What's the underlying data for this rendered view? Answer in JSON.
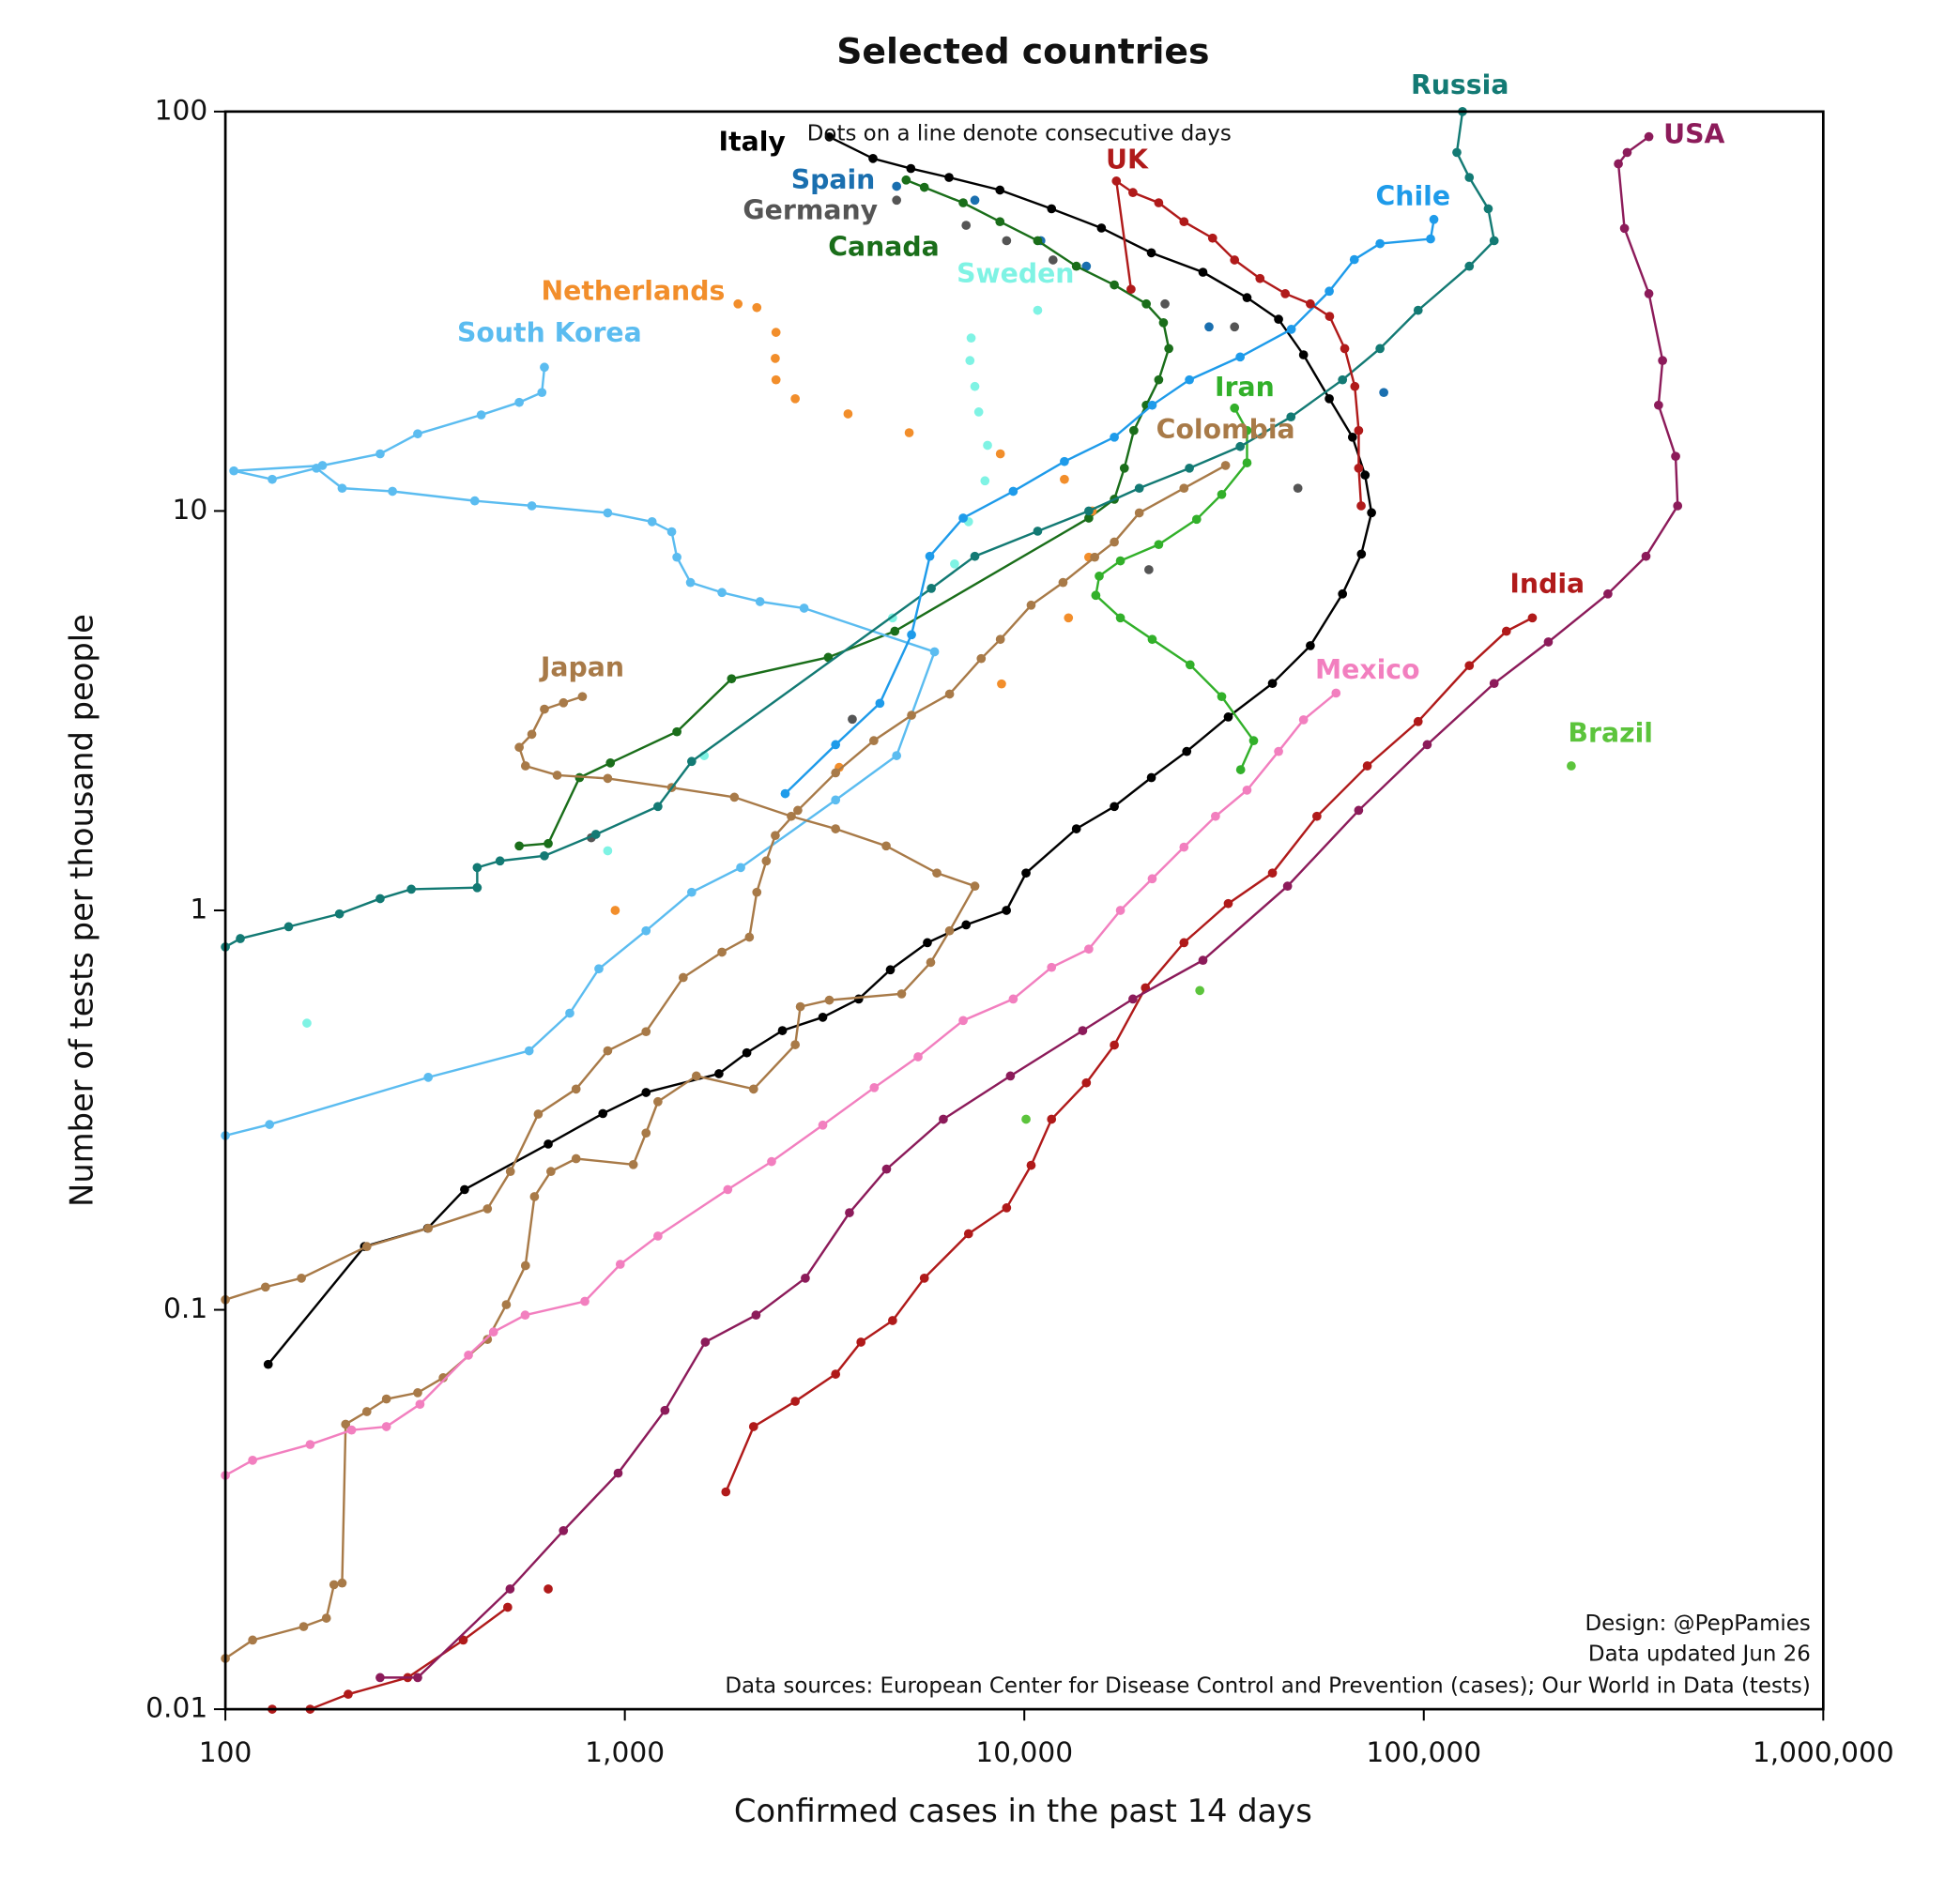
{
  "chart_data": {
    "type": "line",
    "title": "Selected countries",
    "subtitle": "Dots on a line denote consecutive days",
    "x_label": "Confirmed cases in the past 14 days",
    "y_label": "Number of tests per thousand people",
    "notes": [
      "Design: @PepPamies",
      "Data updated Jun 26",
      "Data sources: European Center for Disease Control and Prevention (cases); Our World in Data (tests)"
    ],
    "xlog": true,
    "ylog": true,
    "xlim": [
      100,
      1000000
    ],
    "ylim": [
      0.01,
      100
    ],
    "xticks": [
      100,
      {
        "value": 1000,
        "label": "1,000"
      },
      {
        "value": 10000,
        "label": "10,000"
      },
      {
        "value": 100000,
        "label": "100,000"
      },
      {
        "value": 1000000,
        "label": "1,000,000"
      }
    ],
    "yticks": [
      0.01,
      0.1,
      1,
      10,
      100
    ],
    "series": [
      {
        "name": "Italy",
        "color": "#000000",
        "connected": true,
        "x": [
          128,
          223,
          321,
          397,
          643,
          881,
          1130,
          1720,
          2020,
          2480,
          3130,
          3850,
          4620,
          5720,
          7150,
          9020,
          10100,
          13500,
          16800,
          20800,
          25500,
          32400,
          41800,
          52000,
          62600,
          69800,
          74000,
          71300,
          66300,
          58000,
          50000,
          43300,
          36100,
          28000,
          20800,
          15600,
          11700,
          8690,
          6480,
          5200,
          4180,
          3250
        ],
        "values": [
          0.073,
          0.144,
          0.16,
          0.2,
          0.26,
          0.31,
          0.35,
          0.39,
          0.44,
          0.5,
          0.54,
          0.6,
          0.71,
          0.83,
          0.92,
          1.0,
          1.24,
          1.6,
          1.82,
          2.15,
          2.5,
          3.05,
          3.7,
          4.6,
          6.2,
          7.8,
          9.9,
          12.3,
          15.3,
          19.1,
          24.6,
          30.2,
          34.2,
          39.6,
          44.3,
          51.1,
          57.1,
          63.6,
          68.4,
          72.0,
          76.3,
          86.4
        ]
      },
      {
        "name": "Spain",
        "color": "#1a6faf",
        "connected": false,
        "x": [
          4790,
          7520,
          11000,
          14300,
          29000,
          79400
        ],
        "values": [
          65.0,
          60.0,
          47.5,
          41.0,
          28.9,
          19.8
        ]
      },
      {
        "name": "Germany",
        "color": "#555555",
        "connected": false,
        "x": [
          824,
          3710,
          4790,
          7150,
          9030,
          11800,
          22500,
          33600,
          48400,
          20500
        ],
        "values": [
          1.52,
          3.01,
          60.0,
          51.9,
          47.5,
          42.5,
          33.0,
          28.9,
          11.4,
          7.13
        ]
      },
      {
        "name": "Canada",
        "color": "#1a6e1a",
        "connected": true,
        "x": [
          544,
          643,
          770,
          920,
          1350,
          1850,
          3230,
          4740,
          14500,
          16800,
          17800,
          18800,
          20200,
          21700,
          23000,
          22300,
          20200,
          16800,
          13500,
          10800,
          8690,
          7030,
          5620,
          5060
        ],
        "values": [
          1.45,
          1.47,
          2.15,
          2.34,
          2.8,
          3.8,
          4.3,
          5.0,
          9.6,
          10.7,
          12.8,
          15.9,
          18.4,
          21.3,
          25.5,
          29.6,
          33,
          36.8,
          41,
          47.5,
          53,
          59.1,
          64.6,
          67.4
        ]
      },
      {
        "name": "Netherlands",
        "color": "#f28e2b",
        "connected": false,
        "x": [
          946,
          3440,
          8770,
          12900,
          14500,
          14800,
          12600,
          8710,
          5150,
          3620,
          2670,
          2390,
          2380,
          2390,
          2140,
          1920
        ],
        "values": [
          1.0,
          2.28,
          3.69,
          5.4,
          7.66,
          10.0,
          12.0,
          13.9,
          15.7,
          17.5,
          19.1,
          21.3,
          24.1,
          28.0,
          32.3,
          33.0
        ]
      },
      {
        "name": "Sweden",
        "color": "#7ff3e4",
        "connected": false,
        "x": [
          160,
          906,
          1580,
          4680,
          6690,
          7250,
          7970,
          8090,
          7690,
          7520,
          7310,
          7360,
          10800
        ],
        "values": [
          0.522,
          1.41,
          2.44,
          5.4,
          7.37,
          9.4,
          11.9,
          14.6,
          17.7,
          20.5,
          23.8,
          27.1,
          31.8
        ]
      },
      {
        "name": "South Korea",
        "color": "#5bbcf0",
        "connected": true,
        "x": [
          100,
          129,
          322,
          576,
          728,
          861,
          1130,
          1470,
          1950,
          3370,
          4790,
          5960,
          2810,
          2180,
          1750,
          1460,
          1350,
          1310,
          1170,
          906,
          585,
          421,
          262,
          196,
          169,
          131,
          105,
          175,
          244,
          303,
          437,
          544,
          620,
          629
        ],
        "values": [
          0.273,
          0.291,
          0.382,
          0.445,
          0.553,
          0.714,
          0.889,
          1.11,
          1.28,
          1.89,
          2.44,
          4.44,
          5.71,
          5.93,
          6.25,
          6.62,
          7.66,
          8.87,
          9.4,
          9.89,
          10.3,
          10.6,
          11.2,
          11.4,
          12.8,
          12.0,
          12.6,
          13.0,
          13.9,
          15.6,
          17.4,
          18.7,
          19.8,
          22.9
        ]
      },
      {
        "name": "Japan",
        "color": "#a87a48",
        "connected": true,
        "x": [
          100,
          117,
          157,
          179,
          187,
          196,
          200,
          226,
          253,
          303,
          351,
          453,
          505,
          564,
          594,
          653,
          755,
          1050,
          1130,
          1210,
          1510,
          2100,
          2670,
          2750,
          3250,
          4930,
          5830,
          6500,
          7520,
          6040,
          4510,
          3370,
          2610,
          1880,
          1310,
          906,
          677,
          564,
          544,
          585,
          629,
          702,
          783
        ],
        "values": [
          0.0134,
          0.0149,
          0.0161,
          0.0169,
          0.0205,
          0.0207,
          0.0517,
          0.0556,
          0.0598,
          0.062,
          0.0676,
          0.0843,
          0.103,
          0.129,
          0.192,
          0.222,
          0.239,
          0.231,
          0.277,
          0.332,
          0.385,
          0.357,
          0.461,
          0.574,
          0.596,
          0.618,
          0.741,
          0.889,
          1.15,
          1.24,
          1.45,
          1.6,
          1.72,
          1.92,
          2.03,
          2.14,
          2.18,
          2.3,
          2.56,
          2.76,
          3.19,
          3.31,
          3.43
        ]
      },
      {
        "name": "Colombia",
        "color": "#a87a48",
        "connected": true,
        "x": [
          100,
          126,
          155,
          226,
          322,
          453,
          517,
          607,
          755,
          906,
          1130,
          1400,
          1750,
          2050,
          2140,
          2260,
          2380,
          2710,
          3370,
          4200,
          5220,
          6500,
          7800,
          8710,
          10400,
          12500,
          15000,
          16800,
          19400,
          25100,
          31900
        ],
        "values": [
          0.106,
          0.114,
          0.12,
          0.144,
          0.16,
          0.179,
          0.222,
          0.309,
          0.357,
          0.445,
          0.497,
          0.679,
          0.786,
          0.857,
          1.11,
          1.33,
          1.54,
          1.78,
          2.21,
          2.66,
          3.08,
          3.48,
          4.27,
          4.77,
          5.81,
          6.62,
          7.66,
          8.36,
          9.89,
          11.4,
          13.0
        ]
      },
      {
        "name": "Iran",
        "color": "#32b02a",
        "connected": true,
        "x": [
          34800,
          37500,
          31200,
          26000,
          20900,
          17400,
          15100,
          15400,
          17400,
          21700,
          27000,
          31200,
          36100,
          36100,
          33600
        ],
        "values": [
          2.25,
          2.66,
          3.43,
          4.12,
          4.77,
          5.4,
          6.15,
          6.87,
          7.5,
          8.24,
          9.53,
          11.0,
          13.2,
          15.9,
          18.1
        ]
      },
      {
        "name": "Mexico",
        "color": "#f27fbf",
        "connected": true,
        "x": [
          100,
          117,
          163,
          207,
          253,
          307,
          406,
          469,
          563,
          794,
          974,
          1210,
          1810,
          2330,
          3130,
          4210,
          5420,
          7030,
          9380,
          11700,
          14500,
          17400,
          20900,
          25100,
          30100,
          36100,
          43300,
          50000,
          60300
        ],
        "values": [
          0.0385,
          0.042,
          0.046,
          0.05,
          0.051,
          0.058,
          0.077,
          0.088,
          0.097,
          0.105,
          0.13,
          0.153,
          0.2,
          0.235,
          0.29,
          0.36,
          0.43,
          0.53,
          0.6,
          0.72,
          0.8,
          1.0,
          1.2,
          1.44,
          1.72,
          2.0,
          2.5,
          3.0,
          3.5
        ]
      },
      {
        "name": "India",
        "color": "#b01a1a",
        "connected": true,
        "x": [
          131,
          163,
          203,
          286,
          394,
          509,
          null,
          643,
          null,
          1790,
          2100,
          2670,
          3370,
          3900,
          4680,
          5620,
          7250,
          9030,
          10400,
          11700,
          14300,
          16800,
          20100,
          25100,
          32400,
          41800,
          54000,
          72200,
          96800,
          130000,
          161000,
          187000
        ],
        "values": [
          0.01,
          0.01,
          0.0109,
          0.012,
          0.0149,
          0.018,
          null,
          0.02,
          null,
          0.035,
          0.051,
          0.059,
          0.069,
          0.083,
          0.094,
          0.12,
          0.155,
          0.18,
          0.23,
          0.3,
          0.37,
          0.46,
          0.64,
          0.83,
          1.04,
          1.24,
          1.72,
          2.3,
          2.97,
          4.1,
          5.0,
          5.4
        ]
      },
      {
        "name": "Brazil",
        "color": "#5cc43c",
        "connected": false,
        "x": [
          10100,
          27500,
          234000
        ],
        "values": [
          0.3,
          0.63,
          2.3
        ]
      },
      {
        "name": "USA",
        "color": "#8c1b5a",
        "connected": true,
        "x": [
          244,
          303,
          516,
          702,
          962,
          1260,
          1590,
          2130,
          2830,
          3650,
          4520,
          6270,
          9230,
          14000,
          18700,
          28000,
          45600,
          68700,
          102000,
          150000,
          205000,
          289000,
          360000,
          432000,
          427000,
          387000,
          396000,
          366000,
          318000,
          307000,
          323000,
          366000
        ],
        "values": [
          0.012,
          0.012,
          0.02,
          0.028,
          0.039,
          0.056,
          0.083,
          0.097,
          0.12,
          0.175,
          0.225,
          0.3,
          0.385,
          0.5,
          0.6,
          0.75,
          1.15,
          1.78,
          2.6,
          3.7,
          4.7,
          6.2,
          7.7,
          10.3,
          13.7,
          18.4,
          23.8,
          35,
          51,
          74,
          79,
          86.5
        ]
      },
      {
        "name": "Russia",
        "color": "#137a74",
        "connected": true,
        "x": [
          100,
          109,
          144,
          193,
          244,
          292,
          427,
          427,
          487,
          629,
          846,
          1210,
          1470,
          5850,
          7520,
          10800,
          14500,
          19400,
          25900,
          34700,
          46500,
          62600,
          77700,
          96800,
          130000,
          150000,
          145000,
          130000,
          121000,
          125000
        ],
        "values": [
          0.81,
          0.85,
          0.91,
          0.98,
          1.07,
          1.13,
          1.14,
          1.28,
          1.33,
          1.37,
          1.55,
          1.82,
          2.36,
          6.4,
          7.7,
          8.9,
          10,
          11.4,
          12.8,
          14.5,
          17.2,
          21.3,
          25.5,
          31.8,
          41,
          47.5,
          57.1,
          68.4,
          79,
          100
        ]
      },
      {
        "name": "Chile",
        "color": "#1e9bea",
        "connected": true,
        "x": [
          2520,
          3370,
          4350,
          5220,
          5800,
          7030,
          9380,
          12600,
          16800,
          20900,
          25900,
          34700,
          46600,
          58000,
          67000,
          77700,
          104000,
          106000
        ],
        "values": [
          1.96,
          2.6,
          3.3,
          4.9,
          7.7,
          9.6,
          11.2,
          13.3,
          15.3,
          18.4,
          21.3,
          24.3,
          28.5,
          35.5,
          42.6,
          46.7,
          48,
          53.7
        ]
      },
      {
        "name": "UK",
        "color": "#b01a1a",
        "connected": true,
        "x": [
          69700,
          68700,
          68700,
          67200,
          63400,
          58100,
          52000,
          45000,
          38900,
          33600,
          29600,
          25100,
          21700,
          18700,
          17000,
          18500
        ],
        "values": [
          10.3,
          12.8,
          15.9,
          20.5,
          25.5,
          30.7,
          33.0,
          35.0,
          38.2,
          42.5,
          48.2,
          53.0,
          59.1,
          62.7,
          67.0,
          35.9
        ]
      }
    ]
  }
}
